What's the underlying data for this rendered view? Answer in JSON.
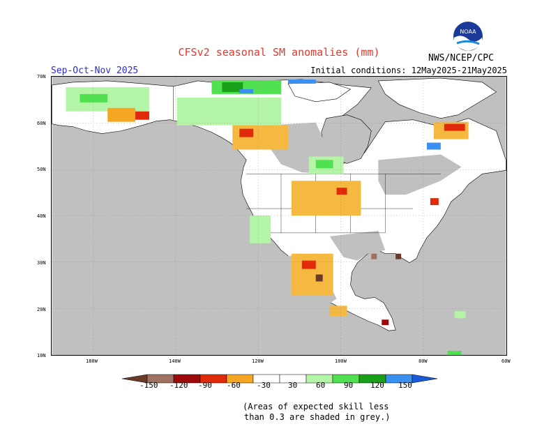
{
  "header": {
    "title": "CFSv2 seasonal SM anomalies (mm)",
    "season": "Sep-Oct-Nov 2025",
    "initial_conditions": "Initial conditions: 12May2025-21May2025",
    "agency": "NWS/NCEP/CPC",
    "logo_text": "NOAA"
  },
  "map": {
    "lat_labels": [
      "70N",
      "60N",
      "50N",
      "40N",
      "30N",
      "20N",
      "10N"
    ],
    "lon_labels": [
      "180W",
      "140W",
      "120W",
      "100W",
      "80W",
      "60W"
    ],
    "colors": {
      "ocean": "#ffffff",
      "no_skill_grey": "#c0c0c0",
      "land_neutral": "#ffffff"
    }
  },
  "legend": {
    "tick_labels": [
      "-150",
      "-120",
      "-90",
      "-60",
      "-30",
      "30",
      "60",
      "90",
      "120",
      "150"
    ],
    "bins": [
      {
        "label": "< -150",
        "color": "#6b3a2a"
      },
      {
        "label": "-150..-120",
        "color": "#a07060"
      },
      {
        "label": "-120..-90",
        "color": "#9e0a0a"
      },
      {
        "label": "-90..-60",
        "color": "#e02a0a"
      },
      {
        "label": "-60..-30",
        "color": "#f5a623"
      },
      {
        "label": "-30..-30",
        "color": "#f5b840"
      },
      {
        "label": "-30..30",
        "color": "#ffffff"
      },
      {
        "label": "30..60",
        "color": "#b5f5a8"
      },
      {
        "label": "60..90",
        "color": "#50e050"
      },
      {
        "label": "90..120",
        "color": "#18a018"
      },
      {
        "label": "120..150",
        "color": "#3a90f0"
      },
      {
        "label": "> 150",
        "color": "#1a5ad8"
      }
    ]
  },
  "footnote": {
    "line1": "(Areas of expected skill less",
    "line2": "than 0.3 are shaded in grey.)"
  }
}
